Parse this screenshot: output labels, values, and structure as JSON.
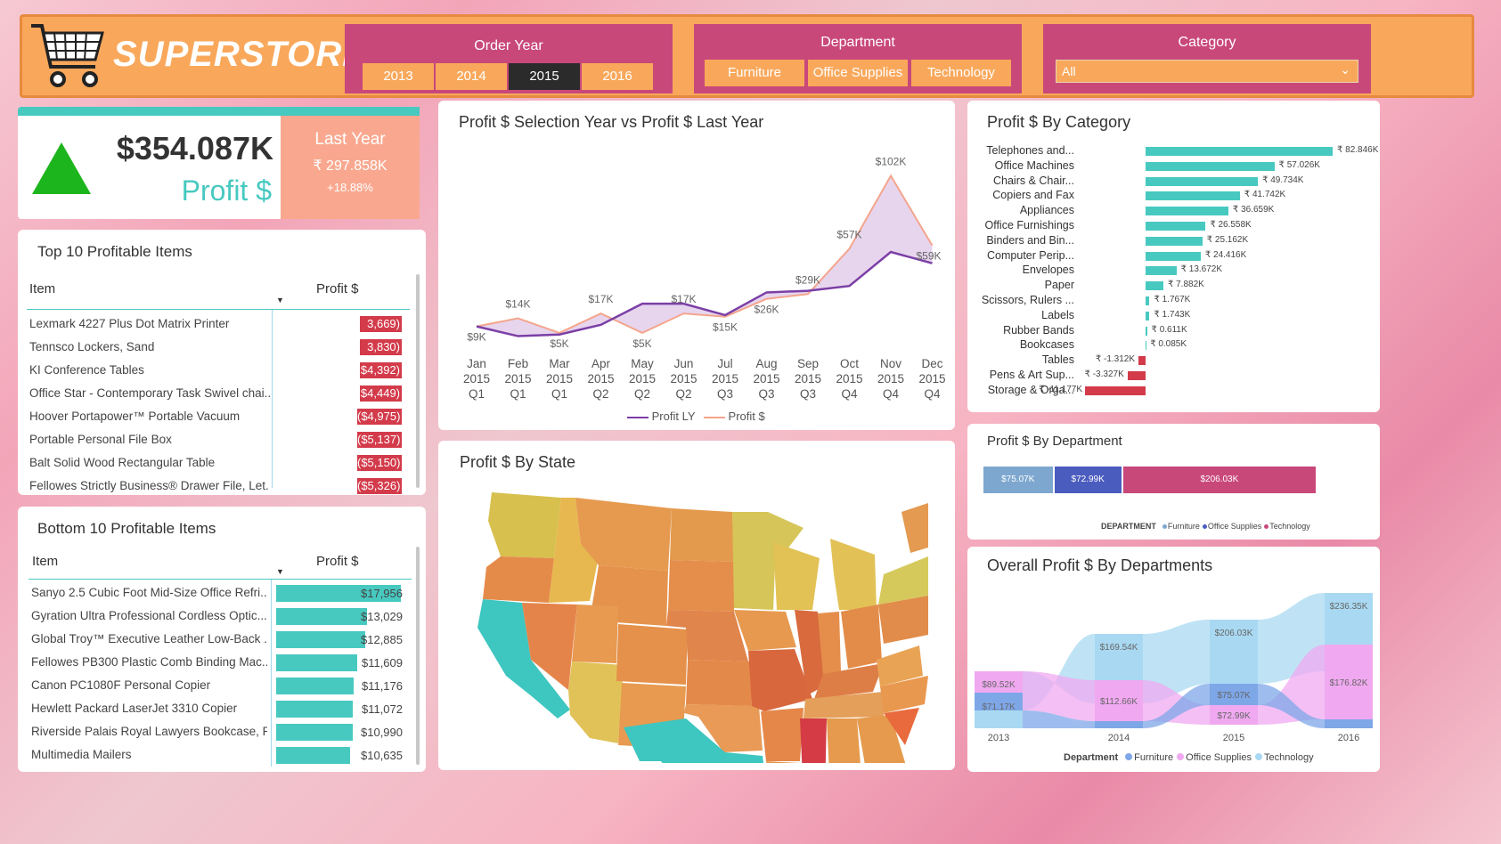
{
  "header": {
    "brand": "SUPERSTORE",
    "order_year": {
      "title": "Order Year",
      "options": [
        "2013",
        "2014",
        "2015",
        "2016"
      ],
      "selected": "2015"
    },
    "department": {
      "title": "Department",
      "options": [
        "Furniture",
        "Office Supplies",
        "Technology"
      ]
    },
    "category": {
      "title": "Category",
      "selected": "All"
    }
  },
  "kpi": {
    "value": "$354.087K",
    "label": "Profit $",
    "last_year_title": "Last Year",
    "last_year_value": "₹ 297.858K",
    "change": "+18.88%"
  },
  "top10": {
    "title": "Top 10 Profitable Items",
    "col_item": "Item",
    "col_profit": "Profit $",
    "rows": [
      {
        "item": "Lexmark 4227 Plus Dot Matrix Printer",
        "profit": "3,669)"
      },
      {
        "item": "Tennsco Lockers, Sand",
        "profit": "3,830)"
      },
      {
        "item": "KI Conference Tables",
        "profit": "$4,392)"
      },
      {
        "item": "Office Star - Contemporary Task Swivel chai...",
        "profit": "$4,449)"
      },
      {
        "item": "Hoover Portapower™ Portable Vacuum",
        "profit": "($4,975)"
      },
      {
        "item": "Portable Personal File Box",
        "profit": "($5,137)"
      },
      {
        "item": "Balt Solid Wood Rectangular Table",
        "profit": "($5,150)"
      },
      {
        "item": "Fellowes Strictly Business® Drawer File, Let...",
        "profit": "($5,326)"
      }
    ]
  },
  "bottom10": {
    "title": "Bottom 10 Profitable Items",
    "col_item": "Item",
    "col_profit": "Profit $",
    "rows": [
      {
        "item": "Sanyo 2.5 Cubic Foot Mid-Size Office Refri...",
        "profit": "$17,956",
        "value": 17956
      },
      {
        "item": "Gyration Ultra Professional Cordless Optic...",
        "profit": "$13,029",
        "value": 13029
      },
      {
        "item": "Global Troy™ Executive Leather Low-Back ...",
        "profit": "$12,885",
        "value": 12885
      },
      {
        "item": "Fellowes PB300 Plastic Comb Binding Mac...",
        "profit": "$11,609",
        "value": 11609
      },
      {
        "item": "Canon PC1080F Personal Copier",
        "profit": "$11,176",
        "value": 11176
      },
      {
        "item": "Hewlett Packard LaserJet 3310 Copier",
        "profit": "$11,072",
        "value": 11072
      },
      {
        "item": "Riverside Palais Royal Lawyers Bookcase, R...",
        "profit": "$10,990",
        "value": 10990
      },
      {
        "item": "Multimedia Mailers",
        "profit": "$10,635",
        "value": 10635
      }
    ]
  },
  "line_chart": {
    "title": "Profit $ Selection Year vs Profit $ Last Year",
    "legend": [
      "Profit LY",
      "Profit $"
    ],
    "colors": {
      "profit_ly": "#7b3fa6",
      "profit": "#f4a58c",
      "fill": "#e4d0ec"
    }
  },
  "map": {
    "title": "Profit $ By State"
  },
  "category_chart": {
    "title": "Profit $ By Category"
  },
  "dept_chart": {
    "title": "Profit $ By Department",
    "legend_title": "DEPARTMENT",
    "segments": [
      {
        "name": "Furniture",
        "label": "$75.07K",
        "value": 75.07,
        "color": "#7ea7cf"
      },
      {
        "name": "Office Supplies",
        "label": "$72.99K",
        "value": 72.99,
        "color": "#4b5cbf"
      },
      {
        "name": "Technology",
        "label": "$206.03K",
        "value": 206.03,
        "color": "#c9487a"
      }
    ]
  },
  "ribbon_chart": {
    "title": "Overall Profit $ By Departments",
    "legend_title": "Department",
    "legend": [
      "Furniture",
      "Office Supplies",
      "Technology"
    ],
    "colors": {
      "Furniture": "#7ea7e8",
      "Office Supplies": "#f0a9f0",
      "Technology": "#a9d9f2"
    }
  },
  "chart_data": [
    {
      "type": "line",
      "title": "Profit $ Selection Year vs Profit $ Last Year",
      "x": [
        "Jan 2015 Q1",
        "Feb 2015 Q1",
        "Mar 2015 Q1",
        "Apr 2015 Q2",
        "May 2015 Q2",
        "Jun 2015 Q2",
        "Jul 2015 Q3",
        "Aug 2015 Q3",
        "Sep 2015 Q3",
        "Oct 2015 Q4",
        "Nov 2015 Q4",
        "Dec 2015 Q4"
      ],
      "series": [
        {
          "name": "Profit $",
          "values": [
            9,
            14,
            5,
            17,
            5,
            17,
            15,
            26,
            29,
            57,
            102,
            59
          ],
          "labels": [
            "$9K",
            "$14K",
            "$5K",
            "$17K",
            "$5K",
            "$17K",
            "$15K",
            "$26K",
            "$29K",
            "$57K",
            "$102K",
            "$59K"
          ]
        },
        {
          "name": "Profit LY",
          "values": [
            9,
            3,
            4,
            10,
            23,
            23,
            16,
            30,
            31,
            34,
            55,
            48
          ]
        }
      ],
      "ylim": [
        0,
        110
      ]
    },
    {
      "type": "bar",
      "title": "Profit $ By Category",
      "categories": [
        "Telephones and...",
        "Office Machines",
        "Chairs & Chair...",
        "Copiers and Fax",
        "Appliances",
        "Office Furnishings",
        "Binders and Bin...",
        "Computer Perip...",
        "Envelopes",
        "Paper",
        "Scissors, Rulers ...",
        "Labels",
        "Rubber Bands",
        "Bookcases",
        "Tables",
        "Pens & Art Sup...",
        "Storage & Orga..."
      ],
      "values": [
        82.846,
        57.026,
        49.734,
        41.742,
        36.659,
        26.558,
        25.162,
        24.416,
        13.672,
        7.882,
        1.767,
        1.743,
        0.611,
        0.085,
        -1.312,
        -3.327,
        -11.177
      ],
      "labels": [
        "₹ 82.846K",
        "₹ 57.026K",
        "₹ 49.734K",
        "₹ 41.742K",
        "₹ 36.659K",
        "₹ 26.558K",
        "₹ 25.162K",
        "₹ 24.416K",
        "₹ 13.672K",
        "₹ 7.882K",
        "₹ 1.767K",
        "₹ 1.743K",
        "₹ 0.611K",
        "₹ 0.085K",
        "₹ -1.312K",
        "₹ -3.327K",
        "₹ -11.177K"
      ]
    },
    {
      "type": "bar",
      "title": "Profit $ By Department",
      "categories": [
        "Furniture",
        "Office Supplies",
        "Technology"
      ],
      "values": [
        75.07,
        72.99,
        206.03
      ]
    },
    {
      "type": "area",
      "title": "Overall Profit $ By Departments",
      "categories": [
        "2013",
        "2014",
        "2015",
        "2016"
      ],
      "series": [
        {
          "name": "Furniture",
          "values": [
            71.17,
            50,
            75.07,
            50
          ],
          "labels": [
            "$71.17K",
            "",
            "$75.07K",
            ""
          ]
        },
        {
          "name": "Office Supplies",
          "values": [
            89.52,
            112.66,
            72.99,
            176.82
          ],
          "labels": [
            "$89.52K",
            "$112.66K",
            "$72.99K",
            "$176.82K"
          ]
        },
        {
          "name": "Technology",
          "values": [
            50,
            169.54,
            206.03,
            236.35
          ],
          "labels": [
            "",
            "$169.54K",
            "$206.03K",
            "$236.35K"
          ]
        }
      ]
    }
  ]
}
